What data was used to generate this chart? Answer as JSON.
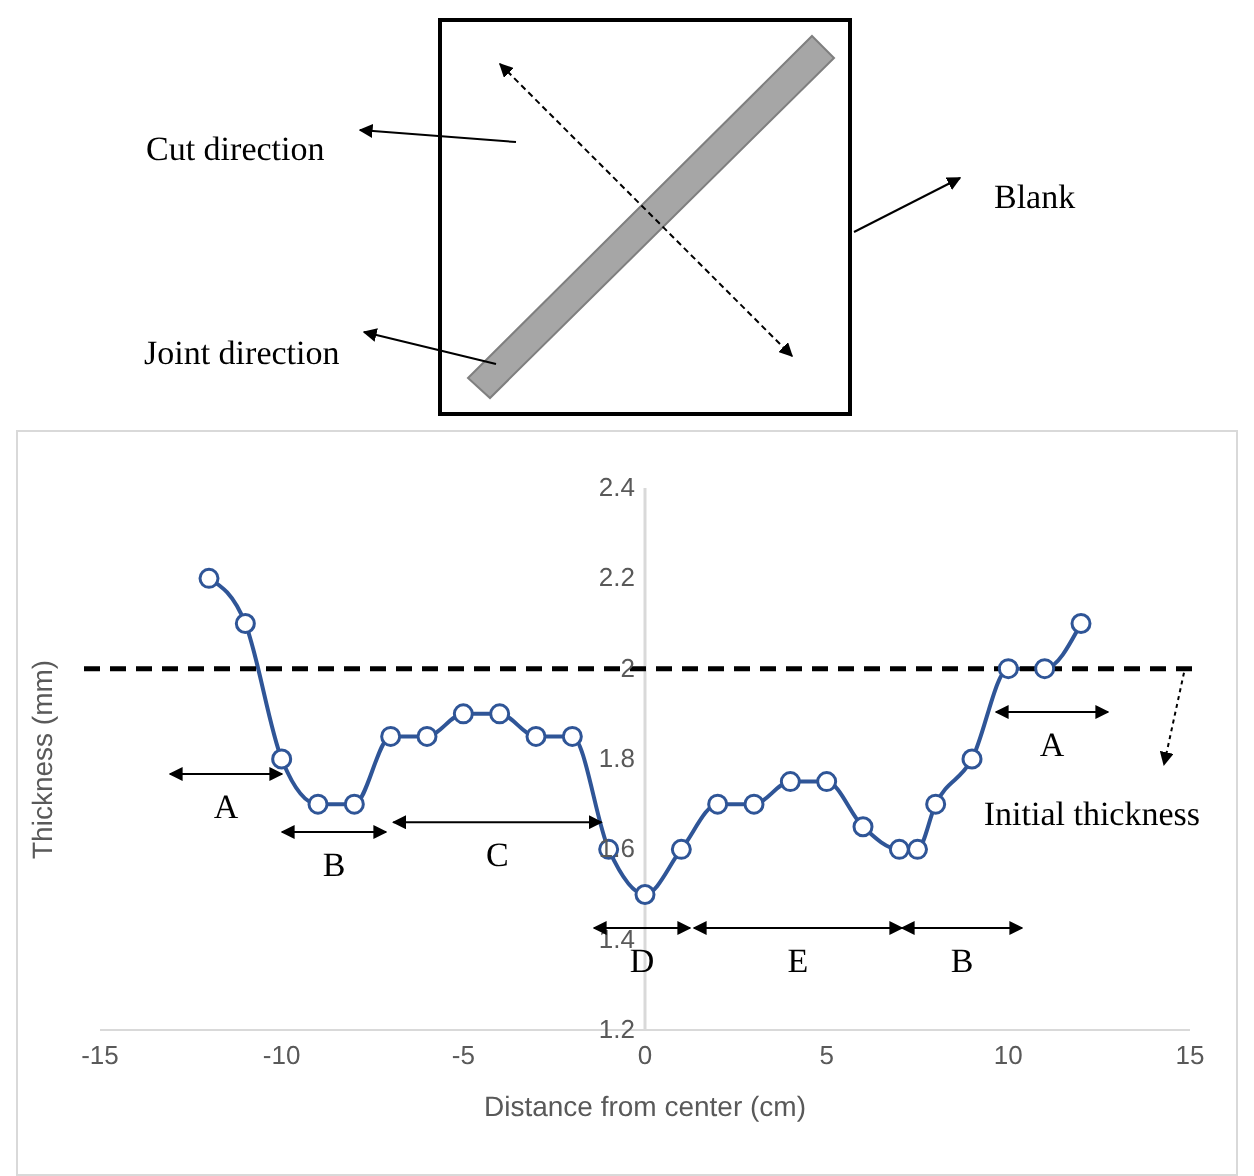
{
  "chart_data": {
    "type": "line",
    "xlabel": "Distance from center (cm)",
    "ylabel": "Thickness (mm)",
    "x": [
      -12,
      -11,
      -10,
      -9,
      -8,
      -7,
      -6,
      -5,
      -4,
      -3,
      -2,
      -1,
      0,
      1,
      2,
      3,
      4,
      5,
      6,
      7,
      7.5,
      8,
      9,
      10,
      11,
      12
    ],
    "series": [
      {
        "color": "#2f5597",
        "values": [
          2.2,
          2.1,
          1.8,
          1.7,
          1.7,
          1.85,
          1.85,
          1.9,
          1.9,
          1.85,
          1.85,
          1.6,
          1.5,
          1.6,
          1.7,
          1.7,
          1.75,
          1.75,
          1.65,
          1.6,
          1.6,
          1.7,
          1.8,
          2.0,
          2.0,
          2.1
        ]
      }
    ],
    "xlim": [
      -15,
      15
    ],
    "xticks": [
      -15,
      -10,
      -5,
      0,
      5,
      10,
      15
    ],
    "ylim": [
      1.2,
      2.4
    ],
    "yticks": [
      1.2,
      1.4,
      1.6,
      1.8,
      2,
      2.2,
      2.4
    ],
    "marker": "circle",
    "grid": false,
    "ref_lines": [
      {
        "axis": "y",
        "value": 2,
        "label": "Initial thickness",
        "color": "#000000",
        "line_style": "dashed"
      }
    ],
    "annotations": [
      "Cut direction",
      "Joint direction",
      "Blank",
      "A",
      "B",
      {
        "text": "C",
        "x": -1.2,
        "y": 1.66
      },
      "D",
      "E",
      "B",
      "A"
    ]
  }
}
